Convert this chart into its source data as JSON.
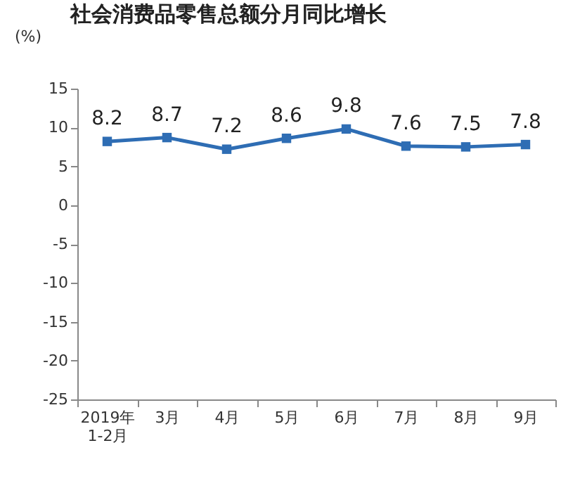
{
  "chart_data": {
    "type": "line",
    "title": "社会消费品零售总额分月同比增长",
    "ylabel": "(%)",
    "categories": [
      "2019年\n1-2月",
      "3月",
      "4月",
      "5月",
      "6月",
      "7月",
      "8月",
      "9月"
    ],
    "series": [
      {
        "color": "#2e6db4",
        "values": [
          8.2,
          8.7,
          7.2,
          8.6,
          9.8,
          7.6,
          7.5,
          7.8
        ]
      }
    ],
    "ylim": [
      -25,
      15
    ],
    "yticks": [
      -25,
      -20,
      -15,
      -10,
      -5,
      0,
      5,
      10,
      15
    ],
    "grid": false,
    "marker": "square",
    "line_style": "solid",
    "data_labels": true
  }
}
